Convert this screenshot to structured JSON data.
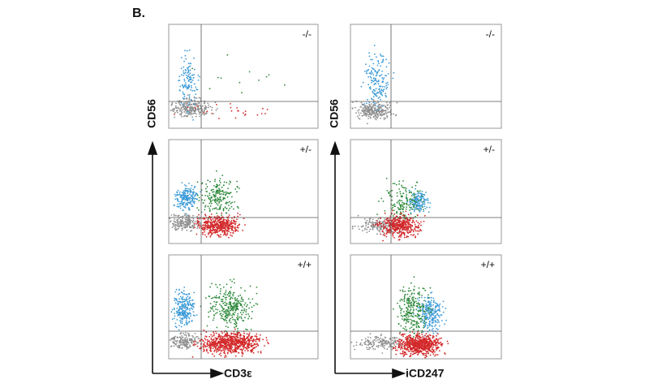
{
  "panel_label": "B.",
  "columns": [
    {
      "y_axis_label": "CD56",
      "x_axis_label": "CD3ε",
      "plots": [
        {
          "genotype": "-/-"
        },
        {
          "genotype": "+/-"
        },
        {
          "genotype": "+/+"
        }
      ]
    },
    {
      "y_axis_label": "CD56",
      "x_axis_label": "iCD247",
      "plots": [
        {
          "genotype": "-/-"
        },
        {
          "genotype": "+/-"
        },
        {
          "genotype": "+/+"
        }
      ]
    }
  ]
}
